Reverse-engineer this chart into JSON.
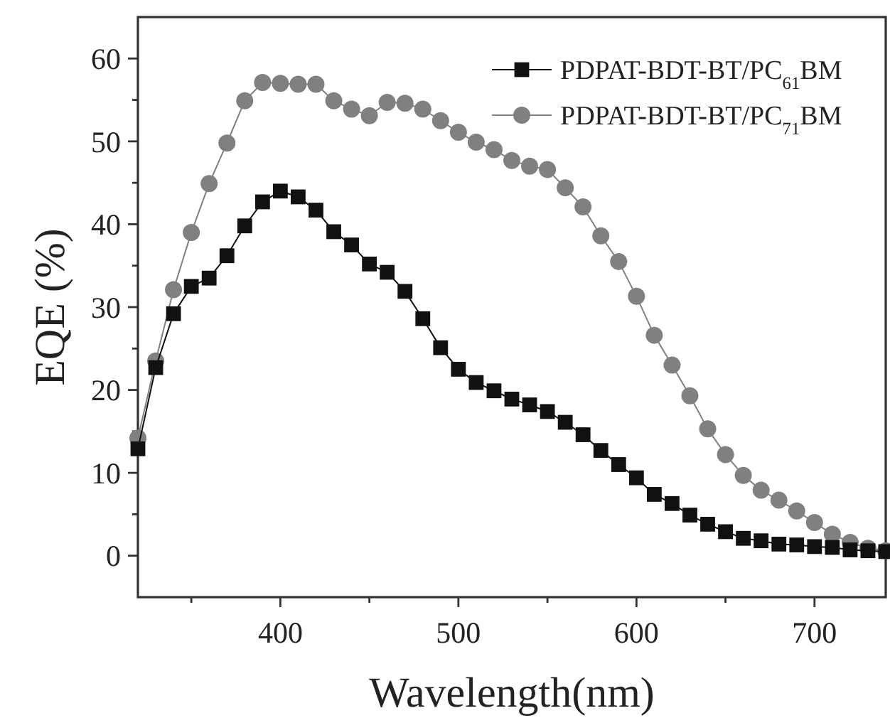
{
  "chart_data": {
    "type": "line",
    "xlabel": "Wavelength(nm)",
    "ylabel": "EQE (%)",
    "x": [
      320,
      330,
      340,
      350,
      360,
      370,
      380,
      390,
      400,
      410,
      420,
      430,
      440,
      450,
      460,
      470,
      480,
      490,
      500,
      510,
      520,
      530,
      540,
      550,
      560,
      570,
      580,
      590,
      600,
      610,
      620,
      630,
      640,
      650,
      660,
      670,
      680,
      690,
      700,
      710,
      720,
      730,
      740
    ],
    "series": [
      {
        "name": "PDPAT-BDT-BT/PC$_{61}$BM",
        "color": "#111111",
        "marker": "square",
        "values": [
          12.9,
          22.7,
          29.2,
          32.5,
          33.5,
          36.2,
          39.8,
          42.7,
          44.0,
          43.3,
          41.7,
          39.1,
          37.5,
          35.2,
          34.2,
          31.9,
          28.6,
          25.1,
          22.5,
          20.9,
          19.9,
          18.9,
          18.2,
          17.4,
          16.1,
          14.6,
          12.7,
          11.0,
          9.4,
          7.4,
          6.3,
          4.9,
          3.8,
          2.9,
          2.1,
          1.8,
          1.4,
          1.3,
          1.1,
          1.0,
          0.7,
          0.6,
          0.5
        ]
      },
      {
        "name": "PDPAT-BDT-BT/PC$_{71}$BM",
        "color": "#808080",
        "marker": "circle",
        "values": [
          14.2,
          23.5,
          32.1,
          39.0,
          44.9,
          49.8,
          54.9,
          57.1,
          57.0,
          56.9,
          56.9,
          54.9,
          53.9,
          53.1,
          54.7,
          54.6,
          53.9,
          52.5,
          51.1,
          49.9,
          49.0,
          47.7,
          47.0,
          46.6,
          44.4,
          42.1,
          38.6,
          35.5,
          31.3,
          26.6,
          23.0,
          19.3,
          15.3,
          12.2,
          9.7,
          7.9,
          6.7,
          5.4,
          4.0,
          2.6,
          1.6,
          0.9,
          0.6
        ]
      }
    ],
    "xlim": [
      320,
      740
    ],
    "xticks": [
      {
        "value": 350,
        "label": null
      },
      400,
      {
        "value": 450,
        "label": null
      },
      500,
      {
        "value": 550,
        "label": null
      },
      600,
      {
        "value": 650,
        "label": null
      },
      700
    ],
    "ylim": [
      -5,
      65
    ],
    "yticks": [
      0,
      {
        "value": 5,
        "label": null
      },
      10,
      {
        "value": 15,
        "label": null
      },
      20,
      {
        "value": 25,
        "label": null
      },
      30,
      {
        "value": 35,
        "label": null
      },
      40,
      {
        "value": 45,
        "label": null
      },
      50,
      {
        "value": 55,
        "label": null
      },
      60
    ],
    "grid": false,
    "legend": "top right",
    "line_style": "solid"
  }
}
